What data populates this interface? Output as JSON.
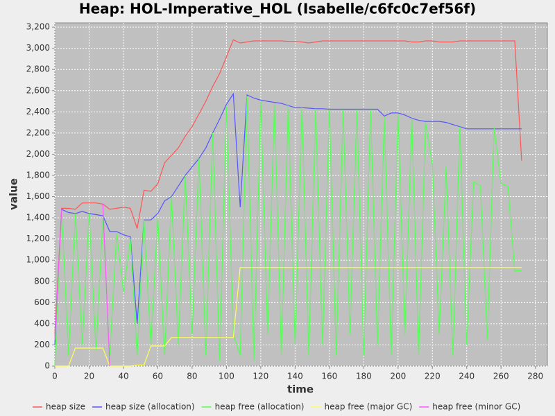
{
  "chart_data": {
    "type": "line",
    "title": "Heap: HOL-Imperative_HOL (Isabelle/c6fc0c7ef56f)",
    "x_label": "time",
    "y_label": "value",
    "xlim": [
      0,
      287
    ],
    "ylim": [
      0,
      3240
    ],
    "xticks": [
      0,
      20,
      40,
      60,
      80,
      100,
      120,
      140,
      160,
      180,
      200,
      220,
      240,
      260,
      280
    ],
    "yticks": [
      0,
      200,
      400,
      600,
      800,
      {
        "value": 1000,
        "label": "1,000"
      },
      {
        "value": 1200,
        "label": "1,200"
      },
      {
        "value": 1400,
        "label": "1,400"
      },
      {
        "value": 1600,
        "label": "1,600"
      },
      {
        "value": 1800,
        "label": "1,800"
      },
      {
        "value": 2000,
        "label": "2,000"
      },
      {
        "value": 2200,
        "label": "2,200"
      },
      {
        "value": 2400,
        "label": "2,400"
      },
      {
        "value": 2600,
        "label": "2,600"
      },
      {
        "value": 2800,
        "label": "2,800"
      },
      {
        "value": 3000,
        "label": "3,000"
      },
      {
        "value": 3200,
        "label": "3,200"
      }
    ],
    "grid": true,
    "x": [
      0,
      4,
      8,
      12,
      16,
      20,
      24,
      28,
      32,
      36,
      40,
      44,
      48,
      52,
      56,
      60,
      64,
      68,
      72,
      76,
      80,
      84,
      88,
      92,
      96,
      100,
      104,
      108,
      112,
      116,
      120,
      124,
      128,
      132,
      136,
      140,
      144,
      148,
      152,
      156,
      160,
      164,
      168,
      172,
      176,
      180,
      184,
      188,
      192,
      196,
      200,
      204,
      208,
      212,
      216,
      220,
      224,
      228,
      232,
      236,
      240,
      244,
      248,
      252,
      256,
      260,
      264,
      268,
      272
    ],
    "series": [
      {
        "name": "heap size",
        "color": "#ff5555",
        "values": [
          300,
          1490,
          1490,
          1480,
          1540,
          1540,
          1540,
          1530,
          1480,
          1490,
          1500,
          1490,
          1300,
          1660,
          1650,
          1720,
          1920,
          1990,
          2060,
          2170,
          2260,
          2380,
          2500,
          2640,
          2760,
          2920,
          3080,
          3050,
          3060,
          3070,
          3070,
          3070,
          3070,
          3070,
          3065,
          3065,
          3060,
          3050,
          3060,
          3070,
          3070,
          3070,
          3070,
          3070,
          3070,
          3070,
          3070,
          3070,
          3070,
          3070,
          3070,
          3070,
          3060,
          3060,
          3070,
          3070,
          3060,
          3060,
          3060,
          3070,
          3070,
          3070,
          3070,
          3070,
          3070,
          3070,
          3070,
          3070,
          1940
        ]
      },
      {
        "name": "heap size (allocation)",
        "color": "#5555ff",
        "values": [
          200,
          1480,
          1450,
          1440,
          1460,
          1440,
          1430,
          1420,
          1270,
          1270,
          1240,
          1220,
          400,
          1380,
          1380,
          1440,
          1560,
          1600,
          1700,
          1800,
          1880,
          1960,
          2060,
          2200,
          2330,
          2470,
          2570,
          1500,
          2560,
          2530,
          2510,
          2500,
          2490,
          2480,
          2460,
          2440,
          2440,
          2435,
          2430,
          2430,
          2425,
          2425,
          2425,
          2425,
          2425,
          2425,
          2425,
          2425,
          2360,
          2390,
          2390,
          2370,
          2340,
          2320,
          2310,
          2310,
          2310,
          2300,
          2280,
          2260,
          2240,
          2240,
          2240,
          2240,
          2240,
          2240,
          2240,
          2240,
          2240
        ]
      },
      {
        "name": "heap free (allocation)",
        "color": "#55ff55",
        "values": [
          0,
          1470,
          100,
          1440,
          200,
          1440,
          150,
          1400,
          100,
          1250,
          700,
          1200,
          100,
          1380,
          200,
          1400,
          100,
          1600,
          200,
          1800,
          300,
          1960,
          100,
          2200,
          50,
          2450,
          300,
          100,
          2550,
          50,
          2500,
          300,
          2480,
          100,
          2460,
          200,
          2440,
          100,
          2430,
          200,
          2420,
          100,
          2420,
          300,
          2420,
          100,
          2420,
          200,
          2350,
          100,
          2380,
          300,
          2340,
          100,
          2300,
          1900,
          300,
          1880,
          100,
          2260,
          200,
          1740,
          1700,
          250,
          2250,
          1720,
          1700,
          900,
          900
        ]
      },
      {
        "name": "heap free (major GC)",
        "color": "#ffff55",
        "values": [
          0,
          0,
          0,
          170,
          170,
          170,
          170,
          170,
          0,
          0,
          0,
          0,
          10,
          10,
          190,
          190,
          190,
          270,
          270,
          270,
          270,
          270,
          270,
          270,
          270,
          270,
          270,
          930,
          930,
          930,
          930,
          930,
          930,
          930,
          930,
          930,
          930,
          930,
          930,
          930,
          930,
          930,
          930,
          930,
          930,
          930,
          930,
          930,
          930,
          930,
          930,
          930,
          930,
          930,
          930,
          930,
          930,
          930,
          930,
          930,
          930,
          930,
          930,
          930,
          930,
          930,
          930,
          930,
          930
        ]
      },
      {
        "name": "heap free (minor GC)",
        "color": "#ff55ff",
        "values": [
          250,
          1480,
          null,
          null,
          null,
          null,
          null,
          1530,
          0,
          null,
          null,
          null,
          null,
          null,
          null,
          null,
          null,
          null,
          null,
          null,
          null,
          null,
          null,
          null,
          null,
          null,
          null,
          null,
          null,
          null,
          null,
          null,
          null,
          null,
          null,
          null,
          null,
          null,
          null,
          null,
          null,
          null,
          null,
          null,
          null,
          null,
          null,
          null,
          null,
          null,
          null,
          null,
          null,
          null,
          null,
          null,
          null,
          null,
          null,
          null,
          null,
          null,
          null,
          null,
          null,
          null,
          null,
          null,
          null
        ]
      }
    ]
  }
}
